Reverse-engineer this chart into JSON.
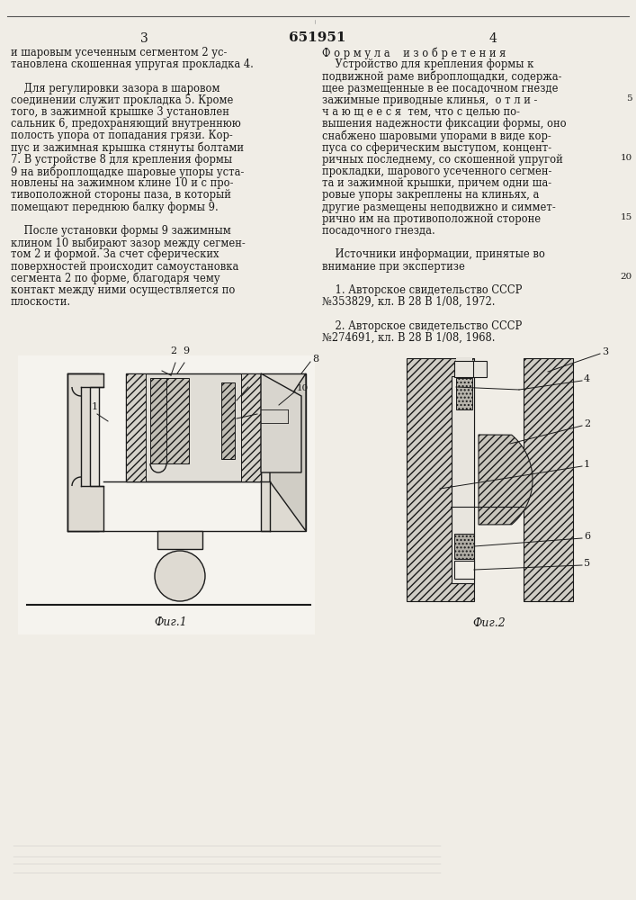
{
  "page_number_left": "3",
  "patent_number": "651951",
  "page_number_right": "4",
  "background_color": "#f0ede6",
  "text_color": "#1a1a1a",
  "left_column_text": [
    "и шаровым усеченным сегментом 2 ус-",
    "тановлена скошенная упругая прокладка 4.",
    "",
    "    Для регулировки зазора в шаровом",
    "соединении служит прокладка 5. Кроме",
    "того, в зажимной крышке 3 установлен",
    "сальник 6, предохраняющий внутреннюю",
    "полость упора от попадания грязи. Кор-",
    "пус и зажимная крышка стянуты болтами",
    "7. В устройстве 8 для крепления формы",
    "9 на виброплощадке шаровые упоры уста-",
    "новлены на зажимном клине 10 и с про-",
    "тивоположной стороны паза, в который",
    "помещают переднюю балку формы 9.",
    "",
    "    После установки формы 9 зажимным",
    "клином 10 выбирают зазор между сегмен-",
    "том 2 и формой. За счет сферических",
    "поверхностей происходит самоустановка",
    "сегмента 2 по форме, благодаря чему",
    "контакт между ними осуществляется по",
    "плоскости."
  ],
  "right_column_text": [
    "Ф о р м у л а    и з о б р е т е н и я",
    "    Устройство для крепления формы к",
    "подвижной раме виброплощадки, содержа-",
    "щее размещенные в ее посадочном гнезде",
    "зажимные приводные клинья,  о т л и -",
    "ч а ю щ е е с я  тем, что с целью по-",
    "вышения надежности фиксации формы, оно",
    "снабжено шаровыми упорами в виде кор-",
    "пуса со сферическим выступом, концент-",
    "ричных последнему, со скошенной упругой",
    "прокладки, шарового усеченного сегмен-",
    "та и зажимной крышки, причем одни ша-",
    "ровые упоры закреплены на клиньях, а",
    "другие размещены неподвижно и симмет-",
    "рично им на противоположной стороне",
    "посадочного гнезда.",
    "",
    "    Источники информации, принятые во",
    "внимание при экспертизе",
    "",
    "    1. Авторское свидетельство СССР",
    "№353829, кл. В 28 В 1/08, 1972.",
    "",
    "    2. Авторское свидетельство СССР",
    "№274691, кл. В 28 В 1/08, 1968."
  ],
  "fig1_caption": "Фиг.1",
  "fig2_caption": "Фиг.2"
}
